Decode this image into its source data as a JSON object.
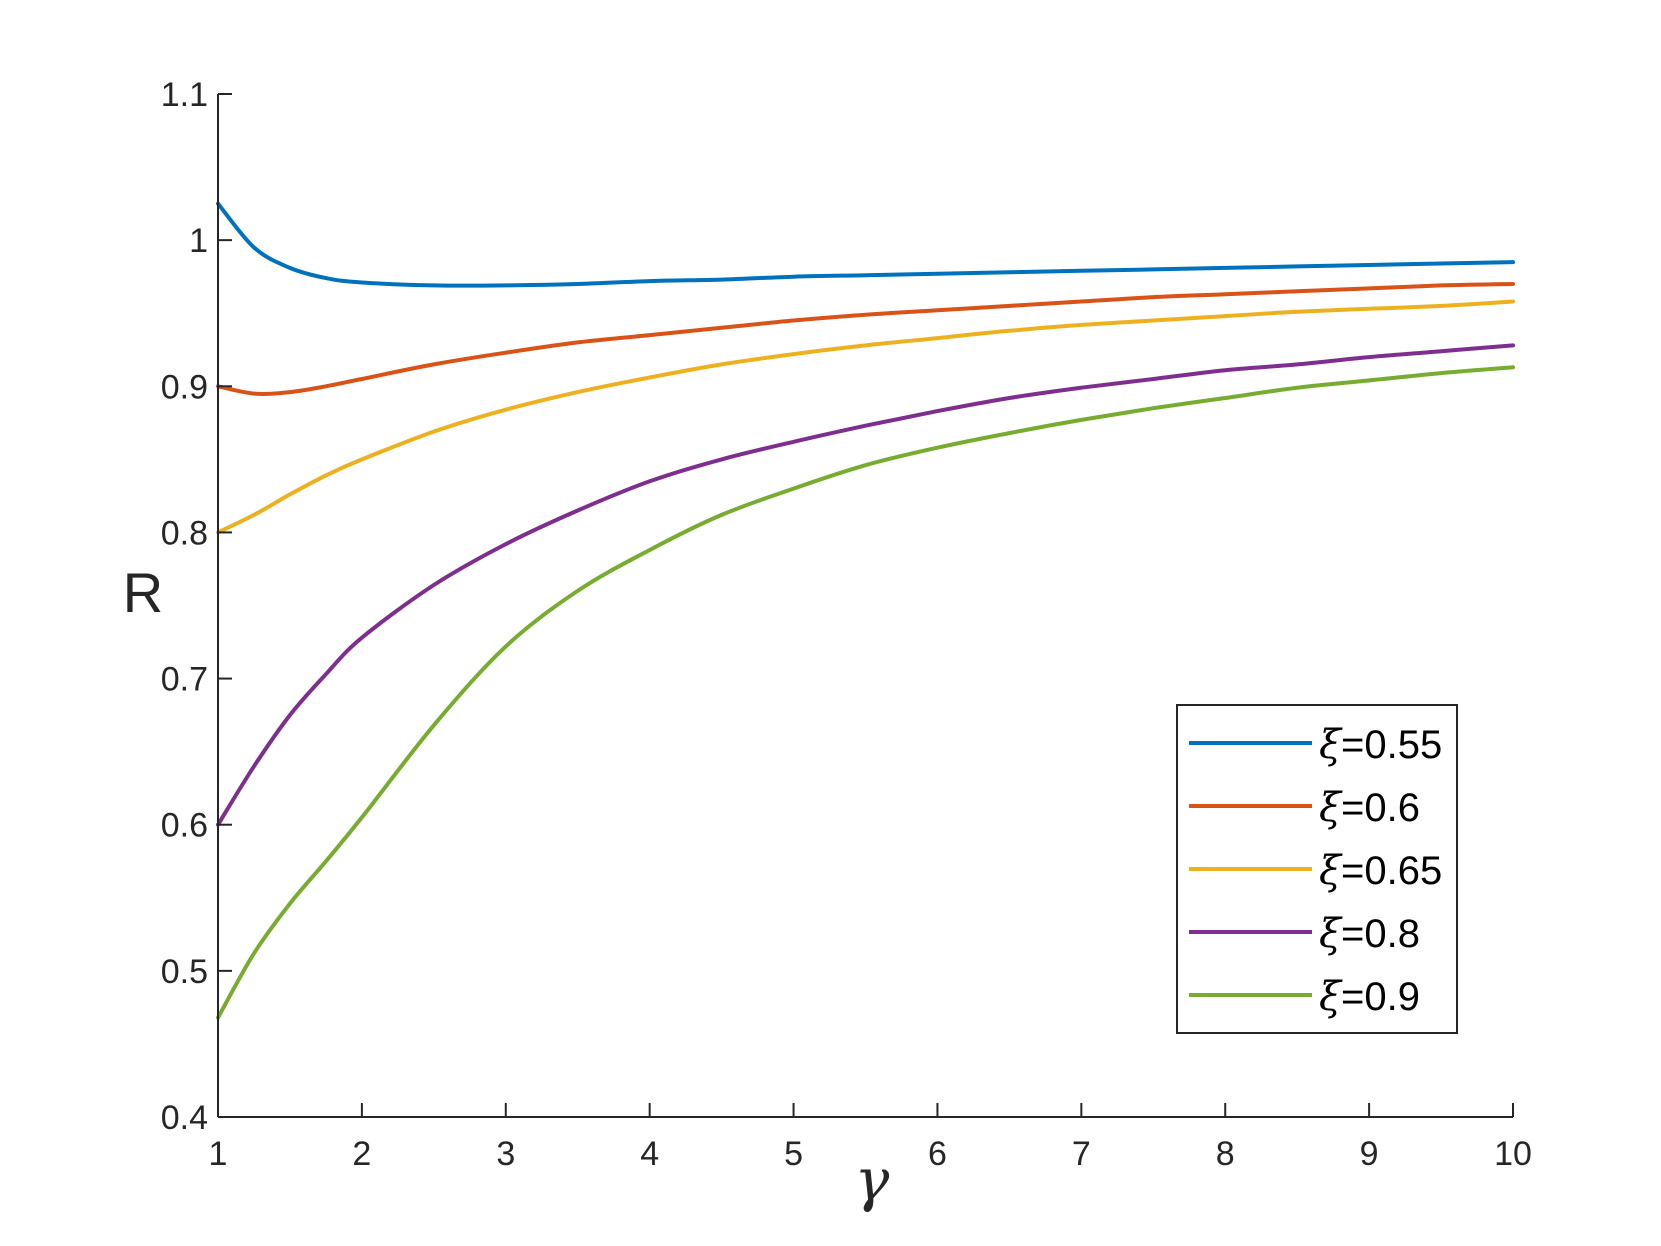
{
  "chart_data": {
    "type": "line",
    "xlabel": "γ",
    "ylabel": "R",
    "xlim": [
      1,
      10
    ],
    "ylim": [
      0.4,
      1.1
    ],
    "xticks": [
      1,
      2,
      3,
      4,
      5,
      6,
      7,
      8,
      9,
      10
    ],
    "yticks": [
      0.4,
      0.5,
      0.6,
      0.7,
      0.8,
      0.9,
      1,
      1.1
    ],
    "xtick_labels": [
      "1",
      "2",
      "3",
      "4",
      "5",
      "6",
      "7",
      "8",
      "9",
      "10"
    ],
    "ytick_labels": [
      "0.4",
      "0.5",
      "0.6",
      "0.7",
      "0.8",
      "0.9",
      "1",
      "1.1"
    ],
    "grid": false,
    "legend_position": "bottom-right",
    "x": [
      1,
      1.25,
      1.5,
      1.75,
      2,
      2.5,
      3,
      3.5,
      4,
      4.5,
      5,
      5.5,
      6,
      6.5,
      7,
      7.5,
      8,
      8.5,
      9,
      9.5,
      10
    ],
    "series": [
      {
        "name": "ξ=0.55",
        "symbol": "ξ",
        "value_label": "=0.55",
        "color": "#0072BD",
        "values": [
          1.025,
          0.995,
          0.981,
          0.974,
          0.971,
          0.969,
          0.969,
          0.97,
          0.972,
          0.973,
          0.975,
          0.976,
          0.977,
          0.978,
          0.979,
          0.98,
          0.981,
          0.982,
          0.983,
          0.984,
          0.985
        ]
      },
      {
        "name": "ξ=0.6",
        "symbol": "ξ",
        "value_label": "=0.6",
        "color": "#D95319",
        "values": [
          0.9,
          0.895,
          0.896,
          0.9,
          0.905,
          0.915,
          0.923,
          0.93,
          0.935,
          0.94,
          0.945,
          0.949,
          0.952,
          0.955,
          0.958,
          0.961,
          0.963,
          0.965,
          0.967,
          0.969,
          0.97
        ]
      },
      {
        "name": "ξ=0.65",
        "symbol": "ξ",
        "value_label": "=0.65",
        "color": "#EDB120",
        "values": [
          0.8,
          0.812,
          0.826,
          0.839,
          0.85,
          0.869,
          0.884,
          0.896,
          0.906,
          0.915,
          0.922,
          0.928,
          0.933,
          0.938,
          0.942,
          0.945,
          0.948,
          0.951,
          0.953,
          0.955,
          0.958
        ]
      },
      {
        "name": "ξ=0.8",
        "symbol": "ξ",
        "value_label": "=0.8",
        "color": "#7E2F8E",
        "values": [
          0.6,
          0.64,
          0.675,
          0.703,
          0.728,
          0.764,
          0.792,
          0.815,
          0.835,
          0.85,
          0.862,
          0.873,
          0.883,
          0.892,
          0.899,
          0.905,
          0.911,
          0.915,
          0.92,
          0.924,
          0.928
        ]
      },
      {
        "name": "ξ=0.9",
        "symbol": "ξ",
        "value_label": "=0.9",
        "color": "#77AC30",
        "values": [
          0.468,
          0.512,
          0.546,
          0.575,
          0.605,
          0.668,
          0.722,
          0.76,
          0.788,
          0.812,
          0.83,
          0.846,
          0.858,
          0.868,
          0.877,
          0.885,
          0.892,
          0.899,
          0.904,
          0.909,
          0.913
        ]
      }
    ]
  }
}
